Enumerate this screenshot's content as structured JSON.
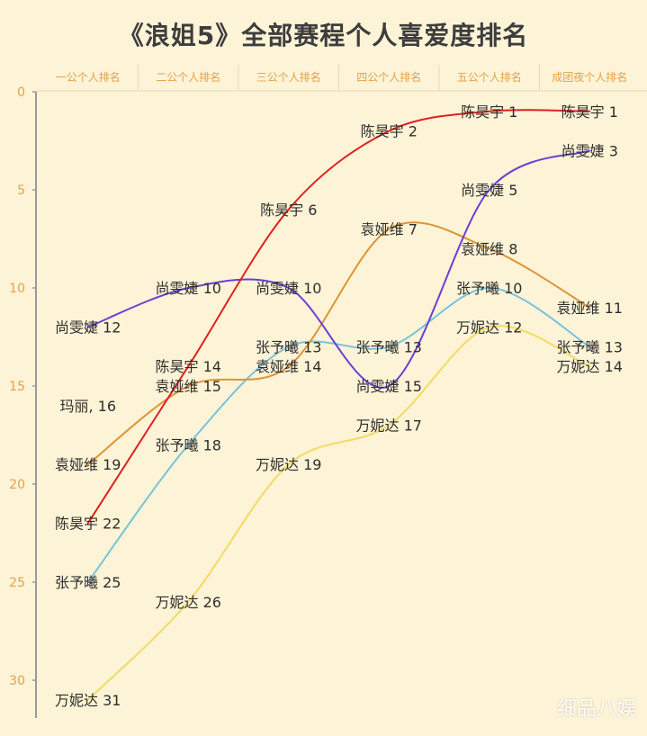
{
  "title": "《浪姐5》全部赛程个人喜爱度排名",
  "watermark": "细品八娱",
  "chart_data": {
    "type": "line",
    "title": "《浪姐5》全部赛程个人喜爱度排名",
    "categories": [
      "一公个人排名",
      "二公个人排名",
      "三公个人排名",
      "四公个人排名",
      "五公个人排名",
      "成团夜个人排名"
    ],
    "y_axis": {
      "min": 0,
      "max": 31,
      "reversed": true,
      "ticks": [
        0,
        5,
        10,
        15,
        20,
        25,
        30
      ]
    },
    "grid": false,
    "series": [
      {
        "name": "陈昊宇",
        "color": "#e02020",
        "values": [
          22,
          14,
          6,
          2,
          1,
          1
        ],
        "labels": [
          "陈昊宇 22",
          "陈昊宇 14",
          "陈昊宇 6",
          "陈昊宇 2",
          "陈昊宇 1",
          "陈昊宇 1"
        ]
      },
      {
        "name": "尚雯婕",
        "color": "#6a3fd6",
        "values": [
          12,
          10,
          10,
          15,
          5,
          3
        ],
        "labels": [
          "尚雯婕 12",
          "尚雯婕 10",
          "尚雯婕 10",
          "尚雯婕 15",
          "尚雯婕 5",
          "尚雯婕 3"
        ]
      },
      {
        "name": "袁娅维",
        "color": "#dc9535",
        "values": [
          19,
          15,
          14,
          7,
          8,
          11
        ],
        "labels": [
          "袁娅维 19",
          "袁娅维 15",
          "袁娅维 14",
          "袁娅维 7",
          "袁娅维 8",
          "袁娅维 11"
        ]
      },
      {
        "name": "张予曦",
        "color": "#79c3dc",
        "values": [
          25,
          18,
          13,
          13,
          10,
          13
        ],
        "labels": [
          "张予曦 25",
          "张予曦 18",
          "张予曦 13",
          "张予曦 13",
          "张予曦 10",
          "张予曦 13"
        ]
      },
      {
        "name": "万妮达",
        "color": "#f2dc60",
        "values": [
          31,
          26,
          19,
          17,
          12,
          14
        ],
        "labels": [
          "万妮达 31",
          "万妮达 26",
          "万妮达 19",
          "万妮达 17",
          "万妮达 12",
          "万妮达 14"
        ]
      }
    ],
    "annotations": [
      {
        "text": "玛丽, 16",
        "category_index": 0,
        "value": 16
      }
    ]
  }
}
